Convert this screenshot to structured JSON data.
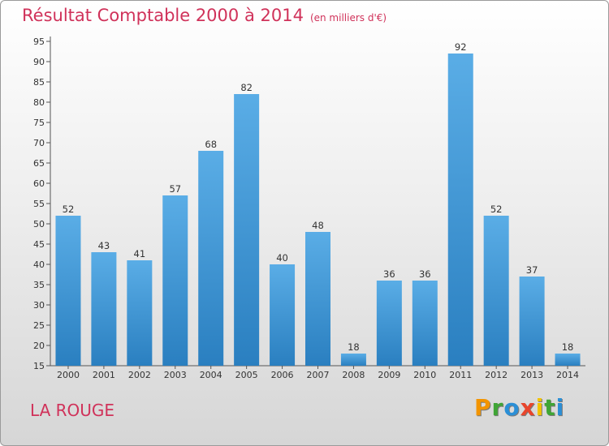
{
  "header": {
    "title": "Résultat Comptable 2000 à 2014",
    "unit": "(en milliers d'€)"
  },
  "commune": "LA ROUGE",
  "brand": {
    "letters": [
      "P",
      "r",
      "o",
      "x",
      "i",
      "t",
      "i"
    ],
    "colors": [
      "#f29400",
      "#3fa535",
      "#2b8fd6",
      "#e8452c",
      "#f2c200",
      "#3fa535",
      "#2b8fd6"
    ]
  },
  "colors": {
    "bar_light": "#5aade6",
    "bar_dark": "#2a7fc0",
    "title": "#d0325a"
  },
  "chart_data": {
    "type": "bar",
    "title": "Résultat Comptable 2000 à 2014",
    "subtitle": "(en milliers d'€)",
    "categories": [
      "2000",
      "2001",
      "2002",
      "2003",
      "2004",
      "2005",
      "2006",
      "2007",
      "2008",
      "2009",
      "2010",
      "2011",
      "2012",
      "2013",
      "2014"
    ],
    "values": [
      52,
      43,
      41,
      57,
      68,
      82,
      40,
      48,
      18,
      36,
      36,
      92,
      52,
      37,
      18
    ],
    "data_labels": [
      "52",
      "43",
      "41",
      "57",
      "68",
      "82",
      "40",
      "48",
      "18",
      "36",
      "36",
      "92",
      "52",
      "37",
      "18"
    ],
    "y_ticks": [
      15,
      20,
      25,
      30,
      35,
      40,
      45,
      50,
      55,
      60,
      65,
      70,
      75,
      80,
      85,
      90,
      95
    ],
    "ylim": [
      15,
      95
    ],
    "xlabel": "",
    "ylabel": "",
    "grid": false,
    "legend": "none"
  }
}
